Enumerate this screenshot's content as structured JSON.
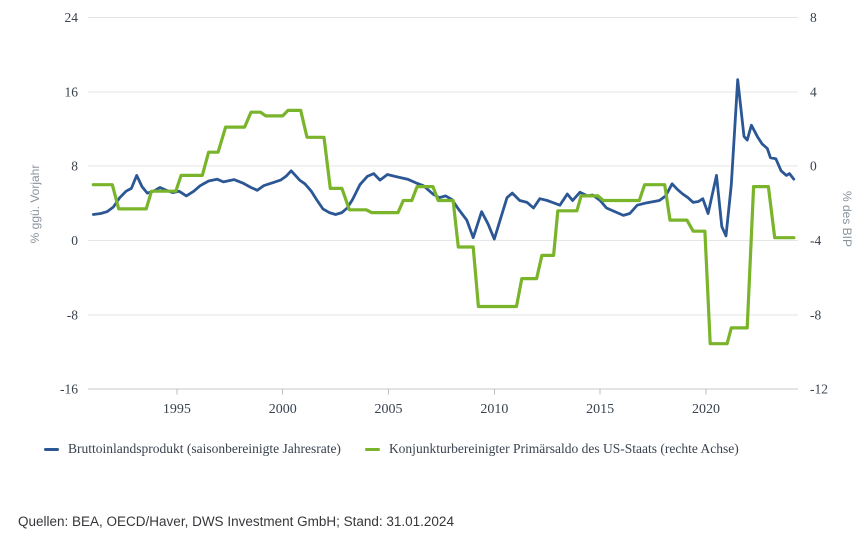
{
  "source_line": "Quellen: BEA, OECD/Haver, DWS Investment GmbH; Stand: 31.01.2024",
  "legend": [
    {
      "label": "Bruttoinlandsprodukt (saisonbereinigte Jahresrate)",
      "color": "#2C5795"
    },
    {
      "label": "Konjunkturbereinigter Primärsaldo des US-Staats (rechte Achse)",
      "color": "#79B42A"
    }
  ],
  "colors": {
    "gdp_line": "#2C5795",
    "balance_line": "#79B42A",
    "grid": "#E4E5E7",
    "axis_line": "#C6C9CC",
    "tick_mark": "#B9BEC3",
    "tick_label": "#39424E",
    "axis_title": "#8A939C"
  },
  "chart_data": {
    "type": "line",
    "title": "",
    "grid": true,
    "legend_position": "bottom",
    "x_axis": {
      "min": 1990.8,
      "max": 2024.35,
      "tick_years": [
        1995,
        2000,
        2005,
        2010,
        2015,
        2020
      ]
    },
    "left_axis": {
      "label": "% ggü. Vorjahr",
      "min": -16,
      "max": 24,
      "ticks": [
        24,
        16,
        8,
        0,
        -8,
        -16
      ]
    },
    "right_axis": {
      "label": "% des BIP",
      "min": -12,
      "max": 8,
      "ticks": [
        8,
        4,
        0,
        -4,
        -8,
        -12
      ]
    },
    "series": [
      {
        "name": "Bruttoinlandsprodukt (saisonbereinigte Jahresrate)",
        "axis": "left",
        "color": "#2C5795",
        "points": [
          [
            1991.05,
            2.8
          ],
          [
            1991.4,
            2.9
          ],
          [
            1991.7,
            3.1
          ],
          [
            1992.0,
            3.6
          ],
          [
            1992.3,
            4.6
          ],
          [
            1992.6,
            5.3
          ],
          [
            1992.85,
            5.6
          ],
          [
            1993.1,
            7.0
          ],
          [
            1993.35,
            5.8
          ],
          [
            1993.6,
            5.1
          ],
          [
            1993.9,
            5.3
          ],
          [
            1994.2,
            5.7
          ],
          [
            1994.5,
            5.4
          ],
          [
            1994.8,
            5.15
          ],
          [
            1995.1,
            5.3
          ],
          [
            1995.45,
            4.8
          ],
          [
            1995.8,
            5.3
          ],
          [
            1996.1,
            5.9
          ],
          [
            1996.5,
            6.4
          ],
          [
            1996.9,
            6.6
          ],
          [
            1997.2,
            6.3
          ],
          [
            1997.7,
            6.55
          ],
          [
            1998.1,
            6.2
          ],
          [
            1998.5,
            5.7
          ],
          [
            1998.8,
            5.4
          ],
          [
            1999.1,
            5.9
          ],
          [
            1999.5,
            6.2
          ],
          [
            1999.9,
            6.5
          ],
          [
            2000.15,
            6.9
          ],
          [
            2000.4,
            7.5
          ],
          [
            2000.8,
            6.5
          ],
          [
            2001.05,
            6.1
          ],
          [
            2001.35,
            5.3
          ],
          [
            2001.6,
            4.4
          ],
          [
            2001.9,
            3.4
          ],
          [
            2002.2,
            3.0
          ],
          [
            2002.5,
            2.8
          ],
          [
            2002.8,
            3.0
          ],
          [
            2003.05,
            3.5
          ],
          [
            2003.3,
            4.4
          ],
          [
            2003.65,
            6.0
          ],
          [
            2004.0,
            6.9
          ],
          [
            2004.3,
            7.2
          ],
          [
            2004.6,
            6.5
          ],
          [
            2004.95,
            7.1
          ],
          [
            2005.3,
            6.9
          ],
          [
            2005.9,
            6.6
          ],
          [
            2006.3,
            6.2
          ],
          [
            2006.65,
            5.9
          ],
          [
            2007.1,
            5.0
          ],
          [
            2007.4,
            4.6
          ],
          [
            2007.7,
            4.8
          ],
          [
            2008.0,
            4.4
          ],
          [
            2008.3,
            3.4
          ],
          [
            2008.7,
            2.2
          ],
          [
            2009.0,
            0.3
          ],
          [
            2009.4,
            3.1
          ],
          [
            2009.7,
            1.8
          ],
          [
            2010.0,
            0.15
          ],
          [
            2010.3,
            2.4
          ],
          [
            2010.6,
            4.6
          ],
          [
            2010.85,
            5.1
          ],
          [
            2011.2,
            4.3
          ],
          [
            2011.55,
            4.1
          ],
          [
            2011.85,
            3.5
          ],
          [
            2012.15,
            4.5
          ],
          [
            2012.5,
            4.3
          ],
          [
            2012.75,
            4.1
          ],
          [
            2013.1,
            3.8
          ],
          [
            2013.45,
            5.0
          ],
          [
            2013.7,
            4.3
          ],
          [
            2014.05,
            5.2
          ],
          [
            2014.4,
            4.8
          ],
          [
            2014.65,
            4.9
          ],
          [
            2015.0,
            4.3
          ],
          [
            2015.3,
            3.5
          ],
          [
            2015.8,
            3.0
          ],
          [
            2016.1,
            2.7
          ],
          [
            2016.4,
            2.9
          ],
          [
            2016.75,
            3.8
          ],
          [
            2017.1,
            4.0
          ],
          [
            2017.45,
            4.15
          ],
          [
            2017.8,
            4.3
          ],
          [
            2018.1,
            4.8
          ],
          [
            2018.4,
            6.1
          ],
          [
            2018.65,
            5.5
          ],
          [
            2018.9,
            5.0
          ],
          [
            2019.15,
            4.6
          ],
          [
            2019.4,
            4.1
          ],
          [
            2019.65,
            4.2
          ],
          [
            2019.85,
            4.5
          ],
          [
            2020.1,
            2.9
          ],
          [
            2020.5,
            7.0
          ],
          [
            2020.75,
            1.5
          ],
          [
            2020.95,
            0.5
          ],
          [
            2021.2,
            6.0
          ],
          [
            2021.5,
            17.3
          ],
          [
            2021.8,
            11.2
          ],
          [
            2021.95,
            10.8
          ],
          [
            2022.15,
            12.4
          ],
          [
            2022.45,
            11.1
          ],
          [
            2022.65,
            10.4
          ],
          [
            2022.9,
            9.9
          ],
          [
            2023.05,
            8.9
          ],
          [
            2023.3,
            8.8
          ],
          [
            2023.55,
            7.5
          ],
          [
            2023.8,
            7.0
          ],
          [
            2023.95,
            7.2
          ],
          [
            2024.15,
            6.6
          ]
        ]
      },
      {
        "name": "Konjunkturbereinigter Primärsaldo des US-Staats",
        "axis": "right",
        "color": "#79B42A",
        "style": "step",
        "points": [
          [
            1991.05,
            -1.0
          ],
          [
            1991.95,
            -1.0
          ],
          [
            1992.25,
            -2.3
          ],
          [
            1993.55,
            -2.3
          ],
          [
            1993.8,
            -1.35
          ],
          [
            1994.95,
            -1.35
          ],
          [
            1995.2,
            -0.5
          ],
          [
            1996.2,
            -0.5
          ],
          [
            1996.5,
            0.75
          ],
          [
            1996.95,
            0.75
          ],
          [
            1997.3,
            2.1
          ],
          [
            1998.2,
            2.1
          ],
          [
            1998.5,
            2.9
          ],
          [
            1998.95,
            2.9
          ],
          [
            1999.2,
            2.7
          ],
          [
            2000.0,
            2.7
          ],
          [
            2000.25,
            3.0
          ],
          [
            2000.85,
            3.0
          ],
          [
            2001.15,
            1.55
          ],
          [
            2001.95,
            1.55
          ],
          [
            2002.25,
            -1.2
          ],
          [
            2002.8,
            -1.2
          ],
          [
            2003.15,
            -2.35
          ],
          [
            2003.95,
            -2.35
          ],
          [
            2004.2,
            -2.5
          ],
          [
            2005.45,
            -2.5
          ],
          [
            2005.7,
            -1.85
          ],
          [
            2006.1,
            -1.85
          ],
          [
            2006.35,
            -1.1
          ],
          [
            2007.1,
            -1.1
          ],
          [
            2007.35,
            -1.85
          ],
          [
            2008.05,
            -1.85
          ],
          [
            2008.3,
            -4.35
          ],
          [
            2009.0,
            -4.35
          ],
          [
            2009.25,
            -7.55
          ],
          [
            2011.05,
            -7.55
          ],
          [
            2011.3,
            -6.05
          ],
          [
            2012.0,
            -6.05
          ],
          [
            2012.25,
            -4.8
          ],
          [
            2012.8,
            -4.8
          ],
          [
            2013.0,
            -2.4
          ],
          [
            2013.9,
            -2.4
          ],
          [
            2014.1,
            -1.6
          ],
          [
            2014.9,
            -1.6
          ],
          [
            2015.15,
            -1.85
          ],
          [
            2016.85,
            -1.85
          ],
          [
            2017.1,
            -1.0
          ],
          [
            2018.05,
            -1.0
          ],
          [
            2018.3,
            -2.9
          ],
          [
            2019.1,
            -2.9
          ],
          [
            2019.4,
            -3.5
          ],
          [
            2019.95,
            -3.5
          ],
          [
            2020.2,
            -9.55
          ],
          [
            2021.0,
            -9.55
          ],
          [
            2021.2,
            -8.7
          ],
          [
            2021.95,
            -8.7
          ],
          [
            2022.25,
            -1.1
          ],
          [
            2022.95,
            -1.1
          ],
          [
            2023.25,
            -3.85
          ],
          [
            2024.15,
            -3.85
          ]
        ]
      }
    ]
  }
}
